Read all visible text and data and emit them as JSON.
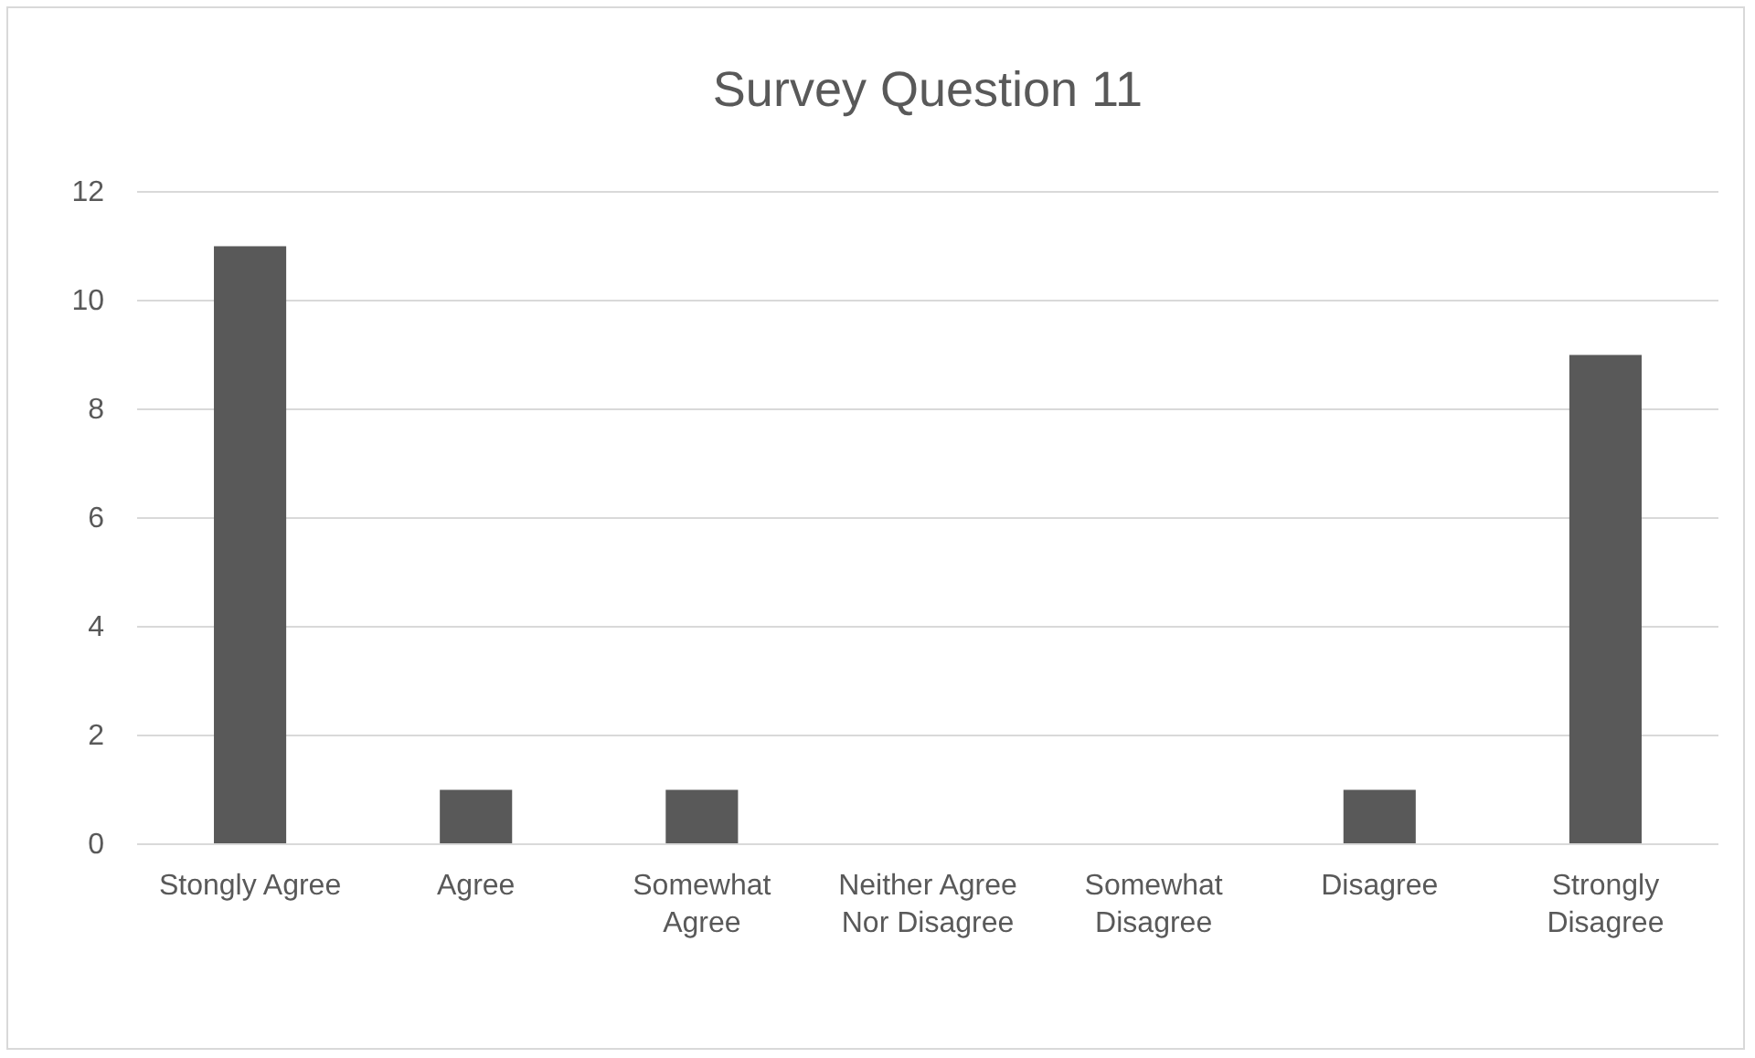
{
  "chart_data": {
    "type": "bar",
    "title": "Survey Question 11",
    "categories": [
      "Stongly Agree",
      "Agree",
      "Somewhat Agree",
      "Neither Agree Nor Disagree",
      "Somewhat Disagree",
      "Disagree",
      "Strongly Disagree"
    ],
    "values": [
      11,
      1,
      1,
      0,
      0,
      1,
      9
    ],
    "color": "#595959",
    "ylim": [
      0,
      12
    ],
    "yticks": [
      0,
      2,
      4,
      6,
      8,
      10,
      12
    ],
    "grid": true
  }
}
